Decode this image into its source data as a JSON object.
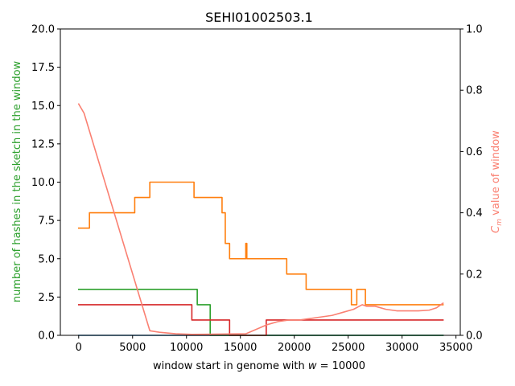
{
  "chart_data": {
    "type": "line",
    "title": "SEHI01002503.1",
    "xlabel": "window start in genome with $w = 10000$",
    "ylabel_left": "number of hashes in the sketch in the window",
    "ylabel_right": "$C_m$ value of window",
    "xlim": [
      -1700,
      35400
    ],
    "ylim_left": [
      0,
      20
    ],
    "ylim_right": [
      0,
      1
    ],
    "x_ticks": [
      0,
      5000,
      10000,
      15000,
      20000,
      25000,
      30000,
      35000
    ],
    "x_tick_labels": [
      "0",
      "5000",
      "10000",
      "15000",
      "20000",
      "25000",
      "30000",
      "35000"
    ],
    "y_left_ticks": [
      0,
      2.5,
      5,
      7.5,
      10,
      12.5,
      15,
      17.5,
      20
    ],
    "y_left_tick_labels": [
      "0.0",
      "2.5",
      "5.0",
      "7.5",
      "10.0",
      "12.5",
      "15.0",
      "17.5",
      "20.0"
    ],
    "y_right_ticks": [
      0,
      0.2,
      0.4,
      0.6,
      0.8,
      1
    ],
    "y_right_tick_labels": [
      "0.0",
      "0.2",
      "0.4",
      "0.6",
      "0.8",
      "1.0"
    ],
    "grid": false,
    "colors": {
      "left_axis_label": "#2ca02c",
      "right_axis_label": "#fa8072"
    },
    "series": [
      {
        "axis": "left",
        "step": true,
        "color": "#1f77b4",
        "x": [
          0,
          33800
        ],
        "y": [
          0,
          0
        ]
      },
      {
        "axis": "left",
        "step": true,
        "color": "#ff7f0e",
        "x": [
          0,
          1000,
          5200,
          6600,
          10700,
          13300,
          13600,
          14000,
          15500,
          15600,
          19300,
          21100,
          25300,
          25800,
          26600,
          33800
        ],
        "y": [
          7,
          8,
          9,
          10,
          9,
          8,
          6,
          5,
          6,
          5,
          4,
          3,
          2,
          3,
          2,
          2
        ]
      },
      {
        "axis": "left",
        "step": true,
        "color": "#2ca02c",
        "x": [
          0,
          11000,
          12200,
          33800
        ],
        "y": [
          3,
          2,
          0,
          0
        ]
      },
      {
        "axis": "left",
        "step": true,
        "color": "#d62728",
        "x": [
          0,
          10500,
          14000,
          17400,
          33800
        ],
        "y": [
          2,
          1,
          0,
          1,
          1
        ]
      },
      {
        "axis": "right",
        "step": false,
        "color": "#fa8072",
        "x": [
          0,
          500,
          6600,
          7500,
          9000,
          10500,
          15500,
          16500,
          17500,
          18500,
          19500,
          20500,
          21500,
          22500,
          23500,
          24500,
          25500,
          26300,
          26700,
          27500,
          28500,
          29500,
          30500,
          31500,
          32500,
          33200,
          33800
        ],
        "y": [
          0.755,
          0.725,
          0.015,
          0.01,
          0.005,
          0.003,
          0.005,
          0.02,
          0.035,
          0.045,
          0.05,
          0.05,
          0.055,
          0.06,
          0.065,
          0.075,
          0.085,
          0.1,
          0.095,
          0.095,
          0.085,
          0.08,
          0.08,
          0.08,
          0.082,
          0.09,
          0.105
        ]
      }
    ]
  }
}
